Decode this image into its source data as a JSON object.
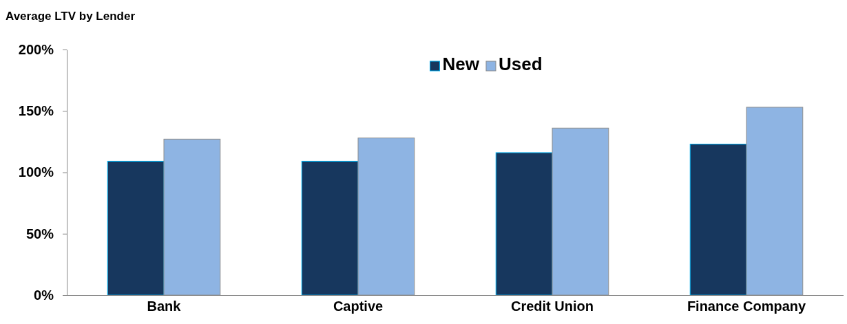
{
  "chart_data": {
    "type": "bar",
    "title": "Average LTV by Lender",
    "categories": [
      "Bank",
      "Captive",
      "Credit Union",
      "Finance Company"
    ],
    "series": [
      {
        "name": "New",
        "color": "#17375e",
        "values": [
          109,
          109,
          116,
          123
        ]
      },
      {
        "name": "Used",
        "color": "#8eb4e3",
        "values": [
          127,
          128,
          136,
          153
        ]
      }
    ],
    "ylim": [
      0,
      200
    ],
    "yticks": [
      {
        "value": 0,
        "label": "0%"
      },
      {
        "value": 50,
        "label": "50%"
      },
      {
        "value": 100,
        "label": "100%"
      },
      {
        "value": 150,
        "label": "150%"
      },
      {
        "value": 200,
        "label": "200%"
      }
    ],
    "grid": false,
    "legend": "top"
  }
}
